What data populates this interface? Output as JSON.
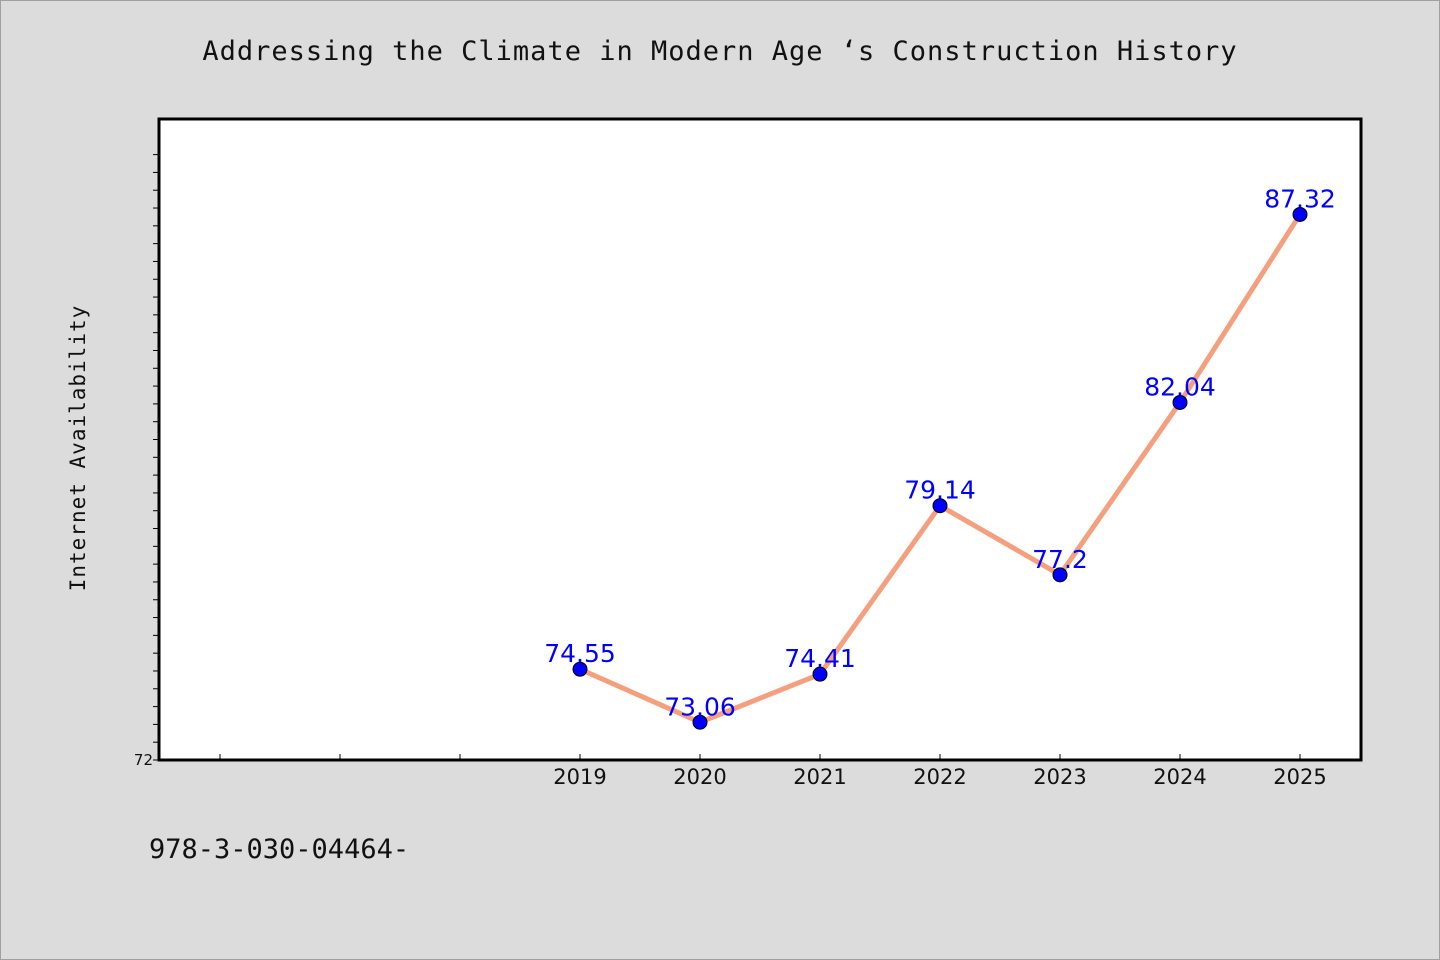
{
  "chart_data": {
    "type": "line",
    "title": "Addressing the Climate in Modern Age ‘s Construction History",
    "xlabel": "",
    "ylabel": "Internet Availability",
    "categories": [
      "2019",
      "2020",
      "2021",
      "2022",
      "2023",
      "2024",
      "2025"
    ],
    "series": [
      {
        "values": [
          74.55,
          73.06,
          74.41,
          79.14,
          77.2,
          82.04,
          87.32
        ],
        "labels": [
          "74.55",
          "73.06",
          "74.41",
          "79.14",
          "77.2",
          "82.04",
          "87.32"
        ]
      }
    ],
    "ylim": [
      72,
      90
    ],
    "y_tick_labels": [
      "72"
    ],
    "grid": false,
    "colors": {
      "line": "#f4a07e",
      "marker": "#0000ff",
      "data_label": "#0000ff",
      "plot_background": "#ffffff",
      "page_background": "#dcdcdc"
    }
  },
  "footer": {
    "code": "978-3-030-04464-"
  }
}
